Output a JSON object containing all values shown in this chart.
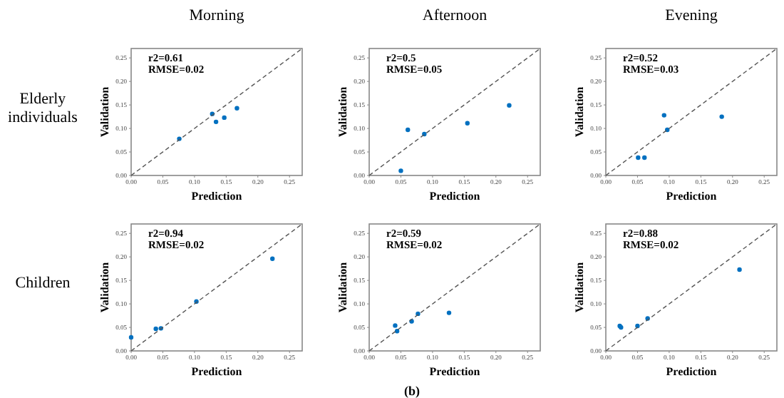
{
  "chart_data": [
    {
      "type": "scatter",
      "title": "Morning",
      "subtitle": "Elderly individuals",
      "xlabel": "Prediction",
      "ylabel": "Validation",
      "annotations": [
        "r2=0.61",
        "RMSE=0.02"
      ],
      "xlim": [
        0,
        0.27
      ],
      "ylim": [
        0,
        0.27
      ],
      "xticks": [
        {
          "value": 0,
          "label": "0.00"
        },
        0.05,
        {
          "value": 0.1,
          "label": "0.10"
        },
        0.15,
        {
          "value": 0.2,
          "label": "0.20"
        },
        0.25
      ],
      "yticks": [
        {
          "value": 0,
          "label": "0.00"
        },
        0.05,
        {
          "value": 0.1,
          "label": "0.10"
        },
        0.15,
        {
          "value": 0.2,
          "label": "0.20"
        },
        0.25
      ],
      "grid": false,
      "marker": "circle",
      "series": [
        {
          "color": "#0070c0",
          "x": [
            0.076,
            0.128,
            0.134,
            0.147,
            0.167
          ],
          "values": [
            0.078,
            0.131,
            0.114,
            0.123,
            0.143
          ]
        },
        {
          "type": "line",
          "marker": "none",
          "color": "#555555",
          "line_style": "dashed",
          "x": [
            0,
            0.27
          ],
          "values": [
            0,
            0.27
          ]
        }
      ]
    },
    {
      "type": "scatter",
      "title": "Afternoon",
      "xlabel": "Prediction",
      "ylabel": "Validation",
      "annotations": [
        "r2=0.5",
        "RMSE=0.05"
      ],
      "xlim": [
        0,
        0.27
      ],
      "ylim": [
        0,
        0.27
      ],
      "xticks": [
        {
          "value": 0,
          "label": "0.00"
        },
        0.05,
        {
          "value": 0.1,
          "label": "0.10"
        },
        0.15,
        {
          "value": 0.2,
          "label": "0.20"
        },
        0.25
      ],
      "yticks": [
        {
          "value": 0,
          "label": "0.00"
        },
        0.05,
        {
          "value": 0.1,
          "label": "0.10"
        },
        0.15,
        {
          "value": 0.2,
          "label": "0.20"
        },
        0.25
      ],
      "grid": false,
      "marker": "circle",
      "series": [
        {
          "color": "#0070c0",
          "x": [
            0.05,
            0.061,
            0.087,
            0.155,
            0.221
          ],
          "values": [
            0.01,
            0.097,
            0.088,
            0.111,
            0.149
          ]
        },
        {
          "type": "line",
          "marker": "none",
          "color": "#555555",
          "line_style": "dashed",
          "x": [
            0,
            0.27
          ],
          "values": [
            0,
            0.27
          ]
        }
      ]
    },
    {
      "type": "scatter",
      "title": "Evening",
      "xlabel": "Prediction",
      "ylabel": "Validation",
      "annotations": [
        "r2=0.52",
        "RMSE=0.03"
      ],
      "xlim": [
        0,
        0.27
      ],
      "ylim": [
        0,
        0.27
      ],
      "xticks": [
        {
          "value": 0,
          "label": "0.00"
        },
        0.05,
        {
          "value": 0.1,
          "label": "0.10"
        },
        0.15,
        {
          "value": 0.2,
          "label": "0.20"
        },
        0.25
      ],
      "yticks": [
        {
          "value": 0,
          "label": "0.00"
        },
        0.05,
        {
          "value": 0.1,
          "label": "0.10"
        },
        0.15,
        {
          "value": 0.2,
          "label": "0.20"
        },
        0.25
      ],
      "grid": false,
      "marker": "circle",
      "series": [
        {
          "color": "#0070c0",
          "x": [
            0.051,
            0.061,
            0.092,
            0.097,
            0.183
          ],
          "values": [
            0.038,
            0.038,
            0.128,
            0.097,
            0.125
          ]
        },
        {
          "type": "line",
          "marker": "none",
          "color": "#555555",
          "line_style": "dashed",
          "x": [
            0,
            0.27
          ],
          "values": [
            0,
            0.27
          ]
        }
      ]
    },
    {
      "type": "scatter",
      "subtitle": "Children",
      "xlabel": "Prediction",
      "ylabel": "Validation",
      "annotations": [
        "r2=0.94",
        "RMSE=0.02"
      ],
      "xlim": [
        0,
        0.27
      ],
      "ylim": [
        0,
        0.27
      ],
      "xticks": [
        {
          "value": 0,
          "label": "0.00"
        },
        0.05,
        {
          "value": 0.1,
          "label": "0.10"
        },
        0.15,
        {
          "value": 0.2,
          "label": "0.20"
        },
        0.25
      ],
      "yticks": [
        {
          "value": 0,
          "label": "0.00"
        },
        0.05,
        {
          "value": 0.1,
          "label": "0.10"
        },
        0.15,
        {
          "value": 0.2,
          "label": "0.20"
        },
        0.25
      ],
      "grid": false,
      "marker": "circle",
      "series": [
        {
          "color": "#0070c0",
          "x": [
            0.0,
            0.039,
            0.047,
            0.103,
            0.223
          ],
          "values": [
            0.029,
            0.047,
            0.048,
            0.105,
            0.196
          ]
        },
        {
          "type": "line",
          "marker": "none",
          "color": "#555555",
          "line_style": "dashed",
          "x": [
            0,
            0.27
          ],
          "values": [
            0,
            0.27
          ]
        }
      ]
    },
    {
      "type": "scatter",
      "xlabel": "Prediction",
      "ylabel": "Validation",
      "annotations": [
        "r2=0.59",
        "RMSE=0.02",
        "(b)"
      ],
      "xlim": [
        0,
        0.27
      ],
      "ylim": [
        0,
        0.27
      ],
      "xticks": [
        {
          "value": 0,
          "label": "0.00"
        },
        0.05,
        {
          "value": 0.1,
          "label": "0.10"
        },
        0.15,
        {
          "value": 0.2,
          "label": "0.20"
        },
        0.25
      ],
      "yticks": [
        {
          "value": 0,
          "label": "0.00"
        },
        0.05,
        {
          "value": 0.1,
          "label": "0.10"
        },
        0.15,
        {
          "value": 0.2,
          "label": "0.20"
        },
        0.25
      ],
      "grid": false,
      "marker": "circle",
      "series": [
        {
          "color": "#0070c0",
          "x": [
            0.041,
            0.044,
            0.067,
            0.077,
            0.126
          ],
          "values": [
            0.054,
            0.042,
            0.063,
            0.079,
            0.081
          ]
        },
        {
          "type": "line",
          "marker": "none",
          "color": "#555555",
          "line_style": "dashed",
          "x": [
            0,
            0.27
          ],
          "values": [
            0,
            0.27
          ]
        }
      ]
    },
    {
      "type": "scatter",
      "xlabel": "Prediction",
      "ylabel": "Validation",
      "annotations": [
        "r2=0.88",
        "RMSE=0.02"
      ],
      "xlim": [
        0,
        0.27
      ],
      "ylim": [
        0,
        0.27
      ],
      "xticks": [
        {
          "value": 0,
          "label": "0.00"
        },
        0.05,
        {
          "value": 0.1,
          "label": "0.10"
        },
        0.15,
        {
          "value": 0.2,
          "label": "0.20"
        },
        0.25
      ],
      "yticks": [
        {
          "value": 0,
          "label": "0.00"
        },
        0.05,
        {
          "value": 0.1,
          "label": "0.10"
        },
        0.15,
        {
          "value": 0.2,
          "label": "0.20"
        },
        0.25
      ],
      "grid": false,
      "marker": "circle",
      "series": [
        {
          "color": "#0070c0",
          "x": [
            0.022,
            0.024,
            0.05,
            0.066,
            0.211
          ],
          "values": [
            0.053,
            0.05,
            0.053,
            0.069,
            0.173
          ]
        },
        {
          "type": "line",
          "marker": "none",
          "color": "#555555",
          "line_style": "dashed",
          "x": [
            0,
            0.27
          ],
          "values": [
            0,
            0.27
          ]
        }
      ]
    }
  ]
}
